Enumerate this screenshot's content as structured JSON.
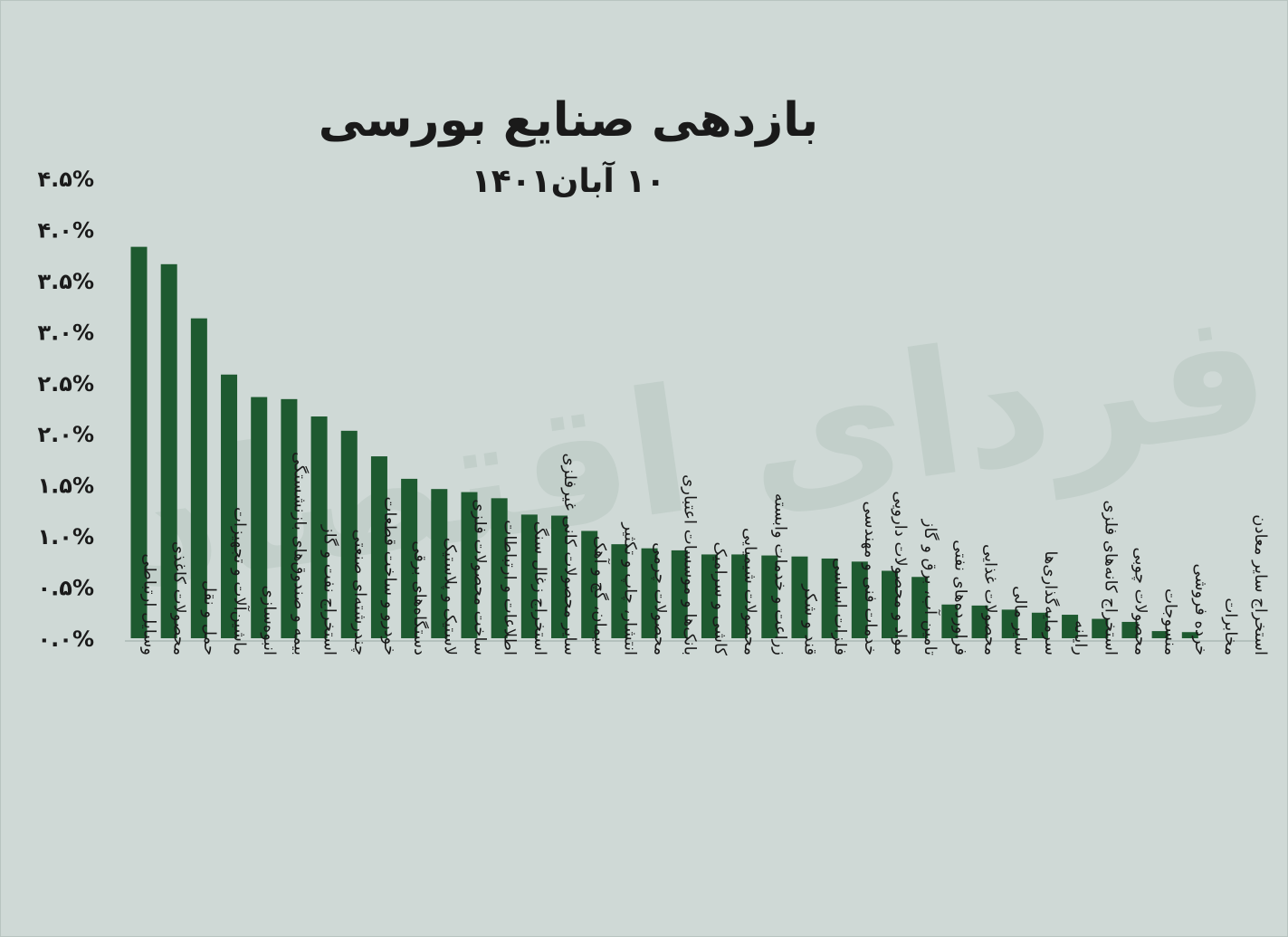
{
  "watermark": "فردای اقتصاد",
  "chart_data": {
    "type": "bar",
    "title": "بازدهی صنایع بورسی",
    "subtitle": "۱۰ آبان۱۴۰۱",
    "xlabel": "",
    "ylabel": "",
    "ylim": [
      0,
      4.5
    ],
    "yticks": [
      0,
      0.5,
      1.0,
      1.5,
      2.0,
      2.5,
      3.0,
      3.5,
      4.0,
      4.5
    ],
    "ytick_labels": [
      "۰.۰%",
      "۰.۵%",
      "۱.۰%",
      "۱.۵%",
      "۲.۰%",
      "۲.۵%",
      "۳.۰%",
      "۳.۵%",
      "۴.۰%",
      "۴.۵%"
    ],
    "grid": false,
    "bar_color": "#1e5a30",
    "categories": [
      "وسایل ارتباطی",
      "محصولات کاغذی",
      "حمل و نقل",
      "ماشین‌آلات و تجهیزات",
      "انبوه‌سازی",
      "بیمه و صندوق‌های بازنشستگی",
      "استخراج نفت و گاز",
      "چندرشته‌ای صنعتی",
      "خودرو و ساخت قطعات",
      "دستگاه‌های برقی",
      "لاستیک و پلاستیک",
      "ساخت محصولات فلزی",
      "اطلاعات و ارتباطات",
      "استخراج زغال سنگ",
      "سایر محصولات کانی غیرفلزی",
      "سیمان، گچ و آهک",
      "انتشار، چاپ و تکثیر",
      "محصولات چرمی",
      "بانک‌ها و موسسات اعتباری",
      "کاشی و سرامیک",
      "محصولات شیمیایی",
      "زراعت و خدمات وابسته",
      "قند و شکر",
      "فلزات اساسی",
      "خدمات فنی و مهندسی",
      "مواد و محصولات دارویی",
      "تامین آب، برق و گاز",
      "فراورده‌های نفتی",
      "محصولات غذایی",
      "سایر مالی",
      "سرمایه‌گذاری‌ها",
      "رایانه",
      "استخراج کانه‌های فلزی",
      "محصولات چوبی",
      "منسوجات",
      "خرده فروشی",
      "مخابرات",
      "استخراج سایر معادن"
    ],
    "values": [
      3.83,
      3.66,
      3.13,
      2.58,
      2.36,
      2.34,
      2.17,
      2.03,
      1.78,
      1.56,
      1.46,
      1.43,
      1.37,
      1.21,
      1.2,
      1.05,
      0.92,
      0.88,
      0.86,
      0.82,
      0.82,
      0.81,
      0.8,
      0.78,
      0.75,
      0.66,
      0.6,
      0.33,
      0.32,
      0.28,
      0.25,
      0.23,
      0.19,
      0.16,
      0.07,
      0.06,
      0.0,
      0.0
    ]
  }
}
